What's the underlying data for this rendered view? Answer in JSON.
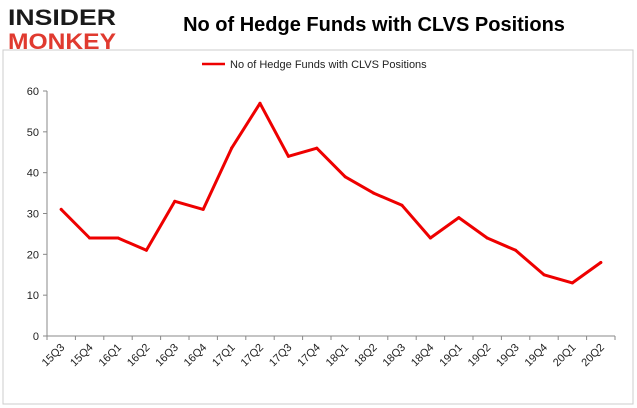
{
  "logo": {
    "line1": "INSIDER",
    "line2": "MONKEY"
  },
  "colors": {
    "series": "#ee0000",
    "logo_dark": "#1a1a1a",
    "logo_red": "#e03a2f",
    "axis": "#888888",
    "frame": "#cccccc"
  },
  "chart_data": {
    "type": "line",
    "title": "No of Hedge Funds with CLVS Positions",
    "xlabel": "",
    "ylabel": "",
    "ylim": [
      0,
      60
    ],
    "yticks": [
      0,
      10,
      20,
      30,
      40,
      50,
      60
    ],
    "grid": false,
    "legend_position": "top-center",
    "categories": [
      "15Q3",
      "15Q4",
      "16Q1",
      "16Q2",
      "16Q3",
      "16Q4",
      "17Q1",
      "17Q2",
      "17Q3",
      "17Q4",
      "18Q1",
      "18Q2",
      "18Q3",
      "18Q4",
      "19Q1",
      "19Q2",
      "19Q3",
      "19Q4",
      "20Q1",
      "20Q2"
    ],
    "series": [
      {
        "name": "No of Hedge Funds with CLVS Positions",
        "values": [
          31,
          24,
          24,
          21,
          33,
          31,
          46,
          57,
          44,
          46,
          39,
          35,
          32,
          24,
          29,
          24,
          21,
          15,
          13,
          18
        ]
      }
    ]
  }
}
